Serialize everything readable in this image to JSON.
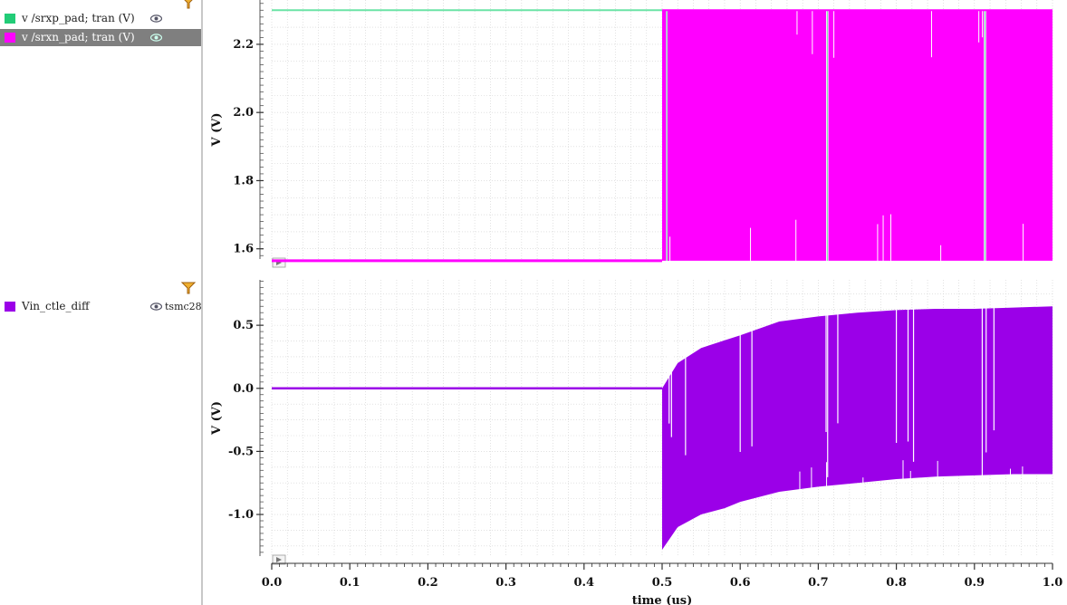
{
  "legend": {
    "top_panel": [
      {
        "label": "v /srxp_pad; tran (V)",
        "color": "#2ecc71",
        "icon": "eye-icon",
        "selected": false
      },
      {
        "label": "v /srxn_pad; tran (V)",
        "color": "#ff00ff",
        "icon": "eye-icon",
        "selected": true
      }
    ],
    "bottom_panel": [
      {
        "label": "Vin_ctle_diff",
        "color": "#9b00e8",
        "icon": "eye-icon",
        "extra": "tsmc28",
        "selected": false
      }
    ]
  },
  "colors": {
    "srxp": "#6be3a6",
    "srxn": "#ff00ff",
    "vin": "#9b00e8",
    "grid": "#d0d0d0",
    "filter": "#e8a020"
  },
  "chart_data": [
    {
      "type": "line",
      "title": "",
      "ylabel": "V (V)",
      "xlabel": "",
      "xlim": [
        0.0,
        1.0
      ],
      "ylim": [
        1.57,
        2.33
      ],
      "yticks": [
        "1.6",
        "1.8",
        "2.0",
        "2.2"
      ],
      "grid": true,
      "series": [
        {
          "name": "v /srxp_pad; tran (V)",
          "x": [
            0.0,
            0.5
          ],
          "values": [
            2.3,
            2.3
          ],
          "note_after": "toggles between 2.3 and 1.565 after 0.5 us"
        },
        {
          "name": "v /srxn_pad; tran (V)",
          "x": [
            0.0,
            0.5,
            0.5,
            1.0
          ],
          "values": [
            1.565,
            1.565,
            2.3,
            2.3
          ],
          "band_after_0_5": [
            1.565,
            2.3
          ]
        }
      ]
    },
    {
      "type": "line",
      "title": "",
      "ylabel": "V (V)",
      "xlabel": "time (us)",
      "xlim": [
        0.0,
        1.0
      ],
      "ylim": [
        -1.33,
        0.86
      ],
      "yticks": [
        "-1.0",
        "-0.5",
        "0.0",
        "0.5"
      ],
      "xticks": [
        "0.0",
        "0.1",
        "0.2",
        "0.3",
        "0.4",
        "0.5",
        "0.6",
        "0.7",
        "0.8",
        "0.9",
        "1.0"
      ],
      "grid": true,
      "series": [
        {
          "name": "Vin_ctle_diff",
          "x": [
            0.0,
            0.5
          ],
          "values": [
            0.0,
            0.0
          ],
          "envelope_x": [
            0.5,
            0.52,
            0.55,
            0.58,
            0.6,
            0.65,
            0.7,
            0.75,
            0.8,
            0.85,
            0.9,
            0.95,
            1.0
          ],
          "envelope_upper": [
            0.0,
            0.2,
            0.32,
            0.38,
            0.42,
            0.53,
            0.57,
            0.6,
            0.62,
            0.63,
            0.63,
            0.64,
            0.65
          ],
          "envelope_lower": [
            -1.28,
            -1.1,
            -1.0,
            -0.95,
            -0.9,
            -0.82,
            -0.78,
            -0.75,
            -0.72,
            -0.7,
            -0.69,
            -0.68,
            -0.68
          ]
        }
      ]
    }
  ]
}
